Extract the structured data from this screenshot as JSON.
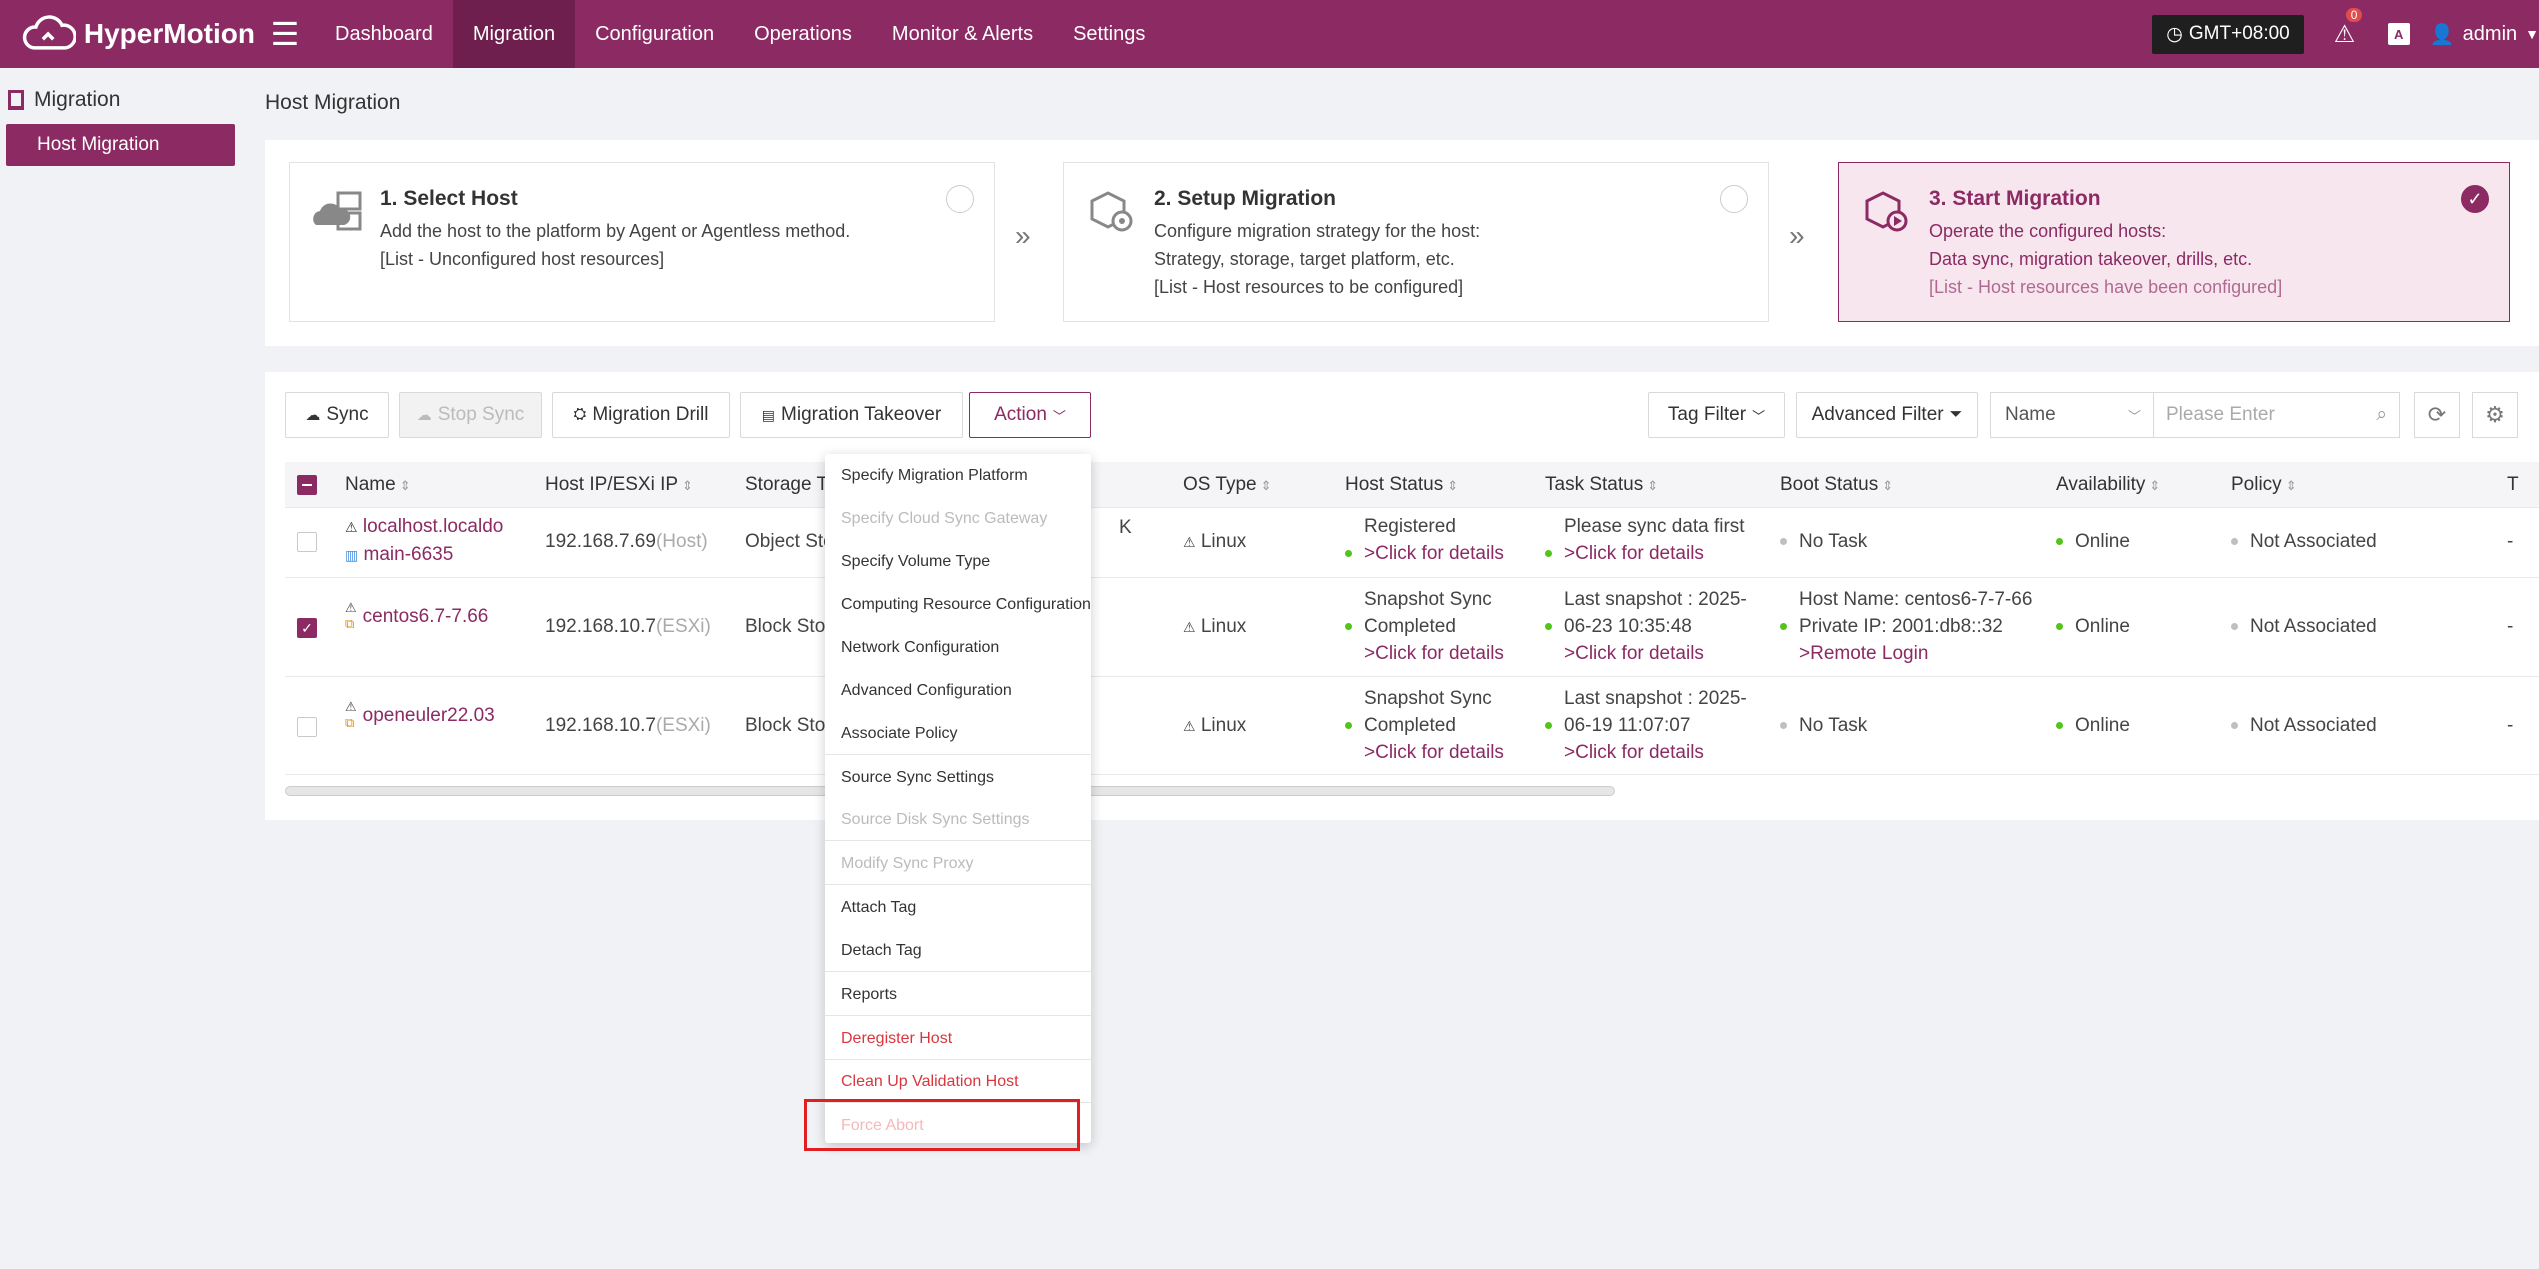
{
  "app": {
    "name": "HyperMotion"
  },
  "nav": {
    "items": [
      {
        "label": "Dashboard"
      },
      {
        "label": "Migration"
      },
      {
        "label": "Configuration"
      },
      {
        "label": "Operations"
      },
      {
        "label": "Monitor & Alerts"
      },
      {
        "label": "Settings"
      }
    ],
    "active": "Migration"
  },
  "header": {
    "timezone": "GMT+08:00",
    "alert_count": "0",
    "lang": "A",
    "user": "admin"
  },
  "sidebar": {
    "group": "Migration",
    "item": "Host Migration"
  },
  "page": {
    "title": "Host Migration"
  },
  "steps": [
    {
      "title": "1. Select Host",
      "line1": "Add the host to the platform by Agent or Agentless method.",
      "line2": "[List - Unconfigured host resources]",
      "line3": ""
    },
    {
      "title": "2. Setup Migration",
      "line1": "Configure migration strategy for the host:",
      "line2": "Strategy, storage, target platform, etc.",
      "line3": "[List - Host resources to be configured]"
    },
    {
      "title": "3. Start Migration",
      "line1": "Operate the configured hosts:",
      "line2": "Data sync, migration takeover, drills, etc.",
      "line3": "[List - Host resources have been configured]"
    }
  ],
  "toolbar": {
    "sync": "Sync",
    "stop_sync": "Stop Sync",
    "drill": "Migration Drill",
    "takeover": "Migration Takeover",
    "action": "Action",
    "tag_filter": "Tag Filter",
    "advanced_filter": "Advanced Filter",
    "name_select": "Name",
    "search_placeholder": "Please Enter"
  },
  "table": {
    "headers": [
      "Name",
      "Host IP/ESXi IP",
      "Storage Ty",
      "OS Type",
      "Host Status",
      "Task Status",
      "Boot Status",
      "Availability",
      "Policy",
      "T"
    ],
    "rows": [
      {
        "name1": "localhost.localdo",
        "name2": "main-6635",
        "ip": "192.168.7.69",
        "ip_type": "(Host)",
        "storage": "Object Sto",
        "extra": "K",
        "os": "Linux",
        "host_status1": "Registered",
        "host_status2": ">Click for details",
        "task1": "Please sync data first",
        "task2": ">Click for details",
        "task3": "",
        "boot1": "No Task",
        "boot2": "",
        "boot3": "",
        "availability": "Online",
        "policy": "Not Associated",
        "t": "-"
      },
      {
        "name1": "centos6.7-7.66",
        "name2": "",
        "ip": "192.168.10.7",
        "ip_type": "(ESXi)",
        "storage": "Block Stora",
        "extra": "",
        "os": "Linux",
        "host_status1": "Snapshot Sync",
        "host_status2": "Completed",
        "host_status3": ">Click for details",
        "task1": "Last snapshot : 2025-",
        "task2": "06-23 10:35:48",
        "task3": ">Click for details",
        "boot1": "Host Name: centos6-7-7-66",
        "boot2": "Private IP: 2001:db8::32",
        "boot3": ">Remote Login",
        "availability": "Online",
        "policy": "Not Associated",
        "t": "-"
      },
      {
        "name1": "openeuler22.03",
        "name2": "",
        "ip": "192.168.10.7",
        "ip_type": "(ESXi)",
        "storage": "Block Stora",
        "extra": "",
        "os": "Linux",
        "host_status1": "Snapshot Sync",
        "host_status2": "Completed",
        "host_status3": ">Click for details",
        "task1": "Last snapshot : 2025-",
        "task2": "06-19 11:07:07",
        "task3": ">Click for details",
        "boot1": "No Task",
        "boot2": "",
        "boot3": "",
        "availability": "Online",
        "policy": "Not Associated",
        "t": "-"
      }
    ]
  },
  "action_menu": [
    {
      "label": "Specify Migration Platform",
      "state": "normal"
    },
    {
      "label": "Specify Cloud Sync Gateway",
      "state": "disabled"
    },
    {
      "label": "Specify Volume Type",
      "state": "normal"
    },
    {
      "label": "Computing Resource Configuration",
      "state": "normal"
    },
    {
      "label": "Network Configuration",
      "state": "normal"
    },
    {
      "label": "Advanced Configuration",
      "state": "normal"
    },
    {
      "label": "Associate Policy",
      "state": "normal"
    },
    {
      "label": "Source Sync Settings",
      "state": "normal"
    },
    {
      "label": "Source Disk Sync Settings",
      "state": "disabled"
    },
    {
      "label": "Modify Sync Proxy",
      "state": "disabled"
    },
    {
      "label": "Attach Tag",
      "state": "normal"
    },
    {
      "label": "Detach Tag",
      "state": "normal"
    },
    {
      "label": "Reports",
      "state": "normal"
    },
    {
      "label": "Deregister Host",
      "state": "danger"
    },
    {
      "label": "Clean Up Validation Host",
      "state": "danger"
    },
    {
      "label": "Force Abort",
      "state": "danger-disabled"
    }
  ],
  "colors": {
    "brand": "#8b2a63",
    "online": "#52c41a",
    "danger": "#d9363e"
  }
}
